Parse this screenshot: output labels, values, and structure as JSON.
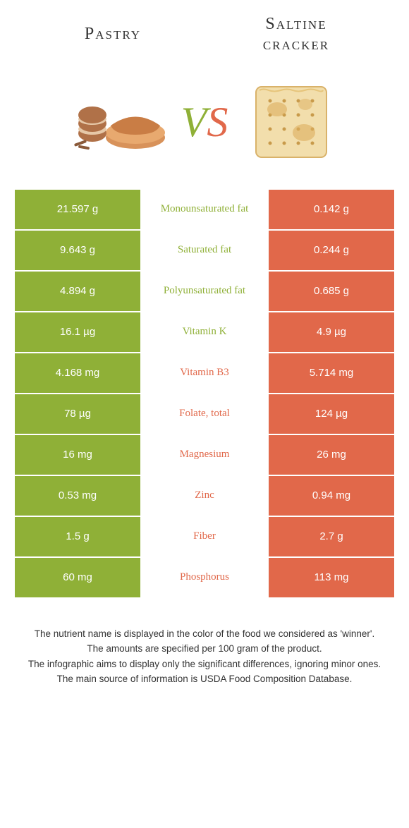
{
  "colors": {
    "left_bg": "#8fb037",
    "right_bg": "#e1684a",
    "left_text": "#8fb037",
    "right_text": "#e1684a"
  },
  "titles": {
    "left": "Pastry",
    "right_line1": "Saltine",
    "right_line2": "cracker"
  },
  "vs": {
    "v": "V",
    "s": "S"
  },
  "rows": [
    {
      "left": "21.597 g",
      "mid": "Monounsaturated fat",
      "right": "0.142 g",
      "winner": "left"
    },
    {
      "left": "9.643 g",
      "mid": "Saturated fat",
      "right": "0.244 g",
      "winner": "left"
    },
    {
      "left": "4.894 g",
      "mid": "Polyunsaturated fat",
      "right": "0.685 g",
      "winner": "left"
    },
    {
      "left": "16.1 µg",
      "mid": "Vitamin K",
      "right": "4.9 µg",
      "winner": "left"
    },
    {
      "left": "4.168 mg",
      "mid": "Vitamin B3",
      "right": "5.714 mg",
      "winner": "right"
    },
    {
      "left": "78 µg",
      "mid": "Folate, total",
      "right": "124 µg",
      "winner": "right"
    },
    {
      "left": "16 mg",
      "mid": "Magnesium",
      "right": "26 mg",
      "winner": "right"
    },
    {
      "left": "0.53 mg",
      "mid": "Zinc",
      "right": "0.94 mg",
      "winner": "right"
    },
    {
      "left": "1.5 g",
      "mid": "Fiber",
      "right": "2.7 g",
      "winner": "right"
    },
    {
      "left": "60 mg",
      "mid": "Phosphorus",
      "right": "113 mg",
      "winner": "right"
    }
  ],
  "footer": {
    "line1": "The nutrient name is displayed in the color of the food we considered as 'winner'.",
    "line2": "The amounts are specified per 100 gram of the product.",
    "line3": "The infographic aims to display only the significant differences, ignoring minor ones.",
    "line4": "The main source of information is USDA Food Composition Database."
  }
}
